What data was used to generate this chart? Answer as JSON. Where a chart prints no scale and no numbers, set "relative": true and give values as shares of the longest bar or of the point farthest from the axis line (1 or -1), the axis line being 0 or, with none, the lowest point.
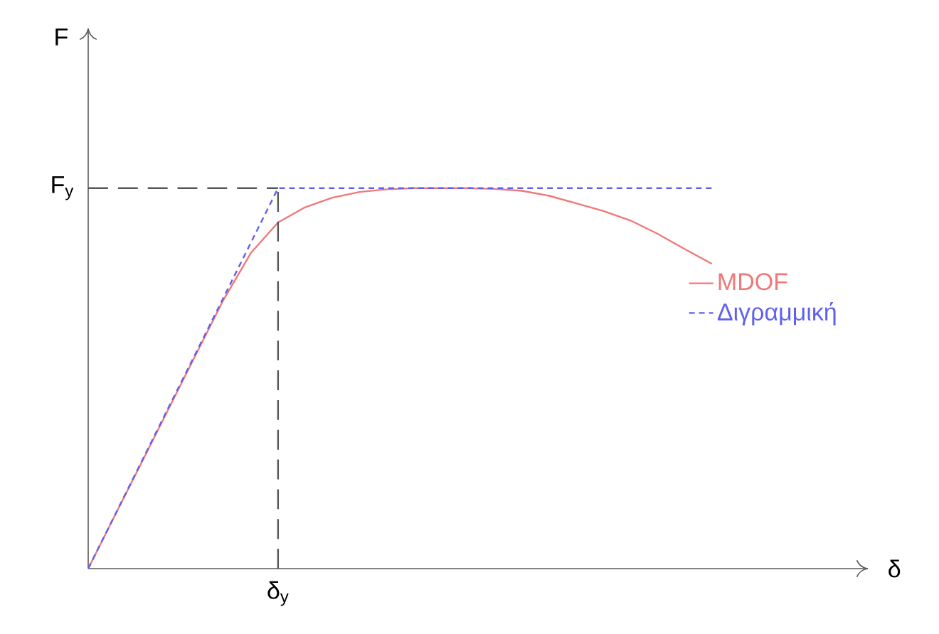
{
  "chart_data": {
    "type": "line",
    "relative": true,
    "legend": "right",
    "categories": [
      null,
      null,
      null,
      null,
      null,
      null,
      null,
      null,
      null,
      null,
      null,
      null,
      null,
      null,
      null,
      null,
      null,
      null,
      null,
      null,
      null,
      null,
      null,
      null
    ],
    "series": [
      {
        "name": "MDOF",
        "color": "#f07878",
        "line_style": "solid",
        "values": [
          0,
          0.142,
          0.283,
          0.425,
          0.567,
          0.708,
          0.83,
          0.91,
          0.95,
          0.975,
          0.99,
          0.997,
          1,
          1,
          1,
          0.998,
          0.993,
          0.98,
          0.96,
          0.94,
          0.915,
          0.88,
          0.84,
          0.801
        ]
      },
      {
        "name": "Διγραμμική",
        "color": "#6060f0",
        "line_style": "dashed",
        "values": [
          0,
          0.143,
          0.286,
          0.429,
          0.571,
          0.714,
          0.857,
          1,
          1,
          1,
          1,
          1,
          1,
          1,
          1,
          1,
          1,
          1,
          1,
          1,
          1,
          1,
          1,
          1
        ]
      }
    ],
    "ref_lines": [
      {
        "axis": "y",
        "value": 1,
        "label": "F$_{y}$",
        "color": "#555555",
        "line_style": "dashed"
      }
    ],
    "annotations": [
      "F",
      "δ",
      "δ$_{y}$"
    ]
  }
}
